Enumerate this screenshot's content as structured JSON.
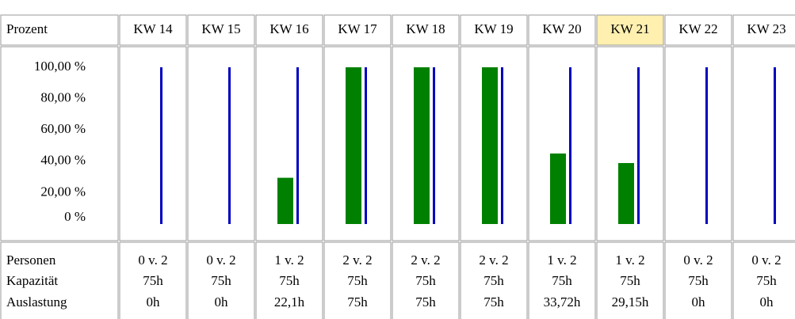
{
  "chart_data": {
    "type": "bar",
    "title": "Prozent",
    "categories": [
      "KW 14",
      "KW 15",
      "KW 16",
      "KW 17",
      "KW 18",
      "KW 19",
      "KW 20",
      "KW 21",
      "KW 22",
      "KW 23"
    ],
    "highlight": "KW 21",
    "series": [
      {
        "color": "#008000",
        "values": [
          0,
          0,
          29.5,
          100,
          100,
          100,
          45,
          38.9,
          0,
          0
        ]
      },
      {
        "color": "#0000c0",
        "values": [
          100,
          100,
          100,
          100,
          100,
          100,
          100,
          100,
          100,
          100
        ]
      }
    ],
    "ylim": [
      0,
      100
    ],
    "yticks": [
      {
        "value": 100,
        "label": "100,00 %"
      },
      {
        "value": 80,
        "label": "80,00 %"
      },
      {
        "value": 60,
        "label": "60,00 %"
      },
      {
        "value": 40,
        "label": "40,00 %"
      },
      {
        "value": 20,
        "label": "20,00 %"
      },
      {
        "value": 0,
        "label": "0 %"
      }
    ]
  },
  "table": {
    "row_labels": [
      "Personen",
      "Kapazität",
      "Auslastung"
    ],
    "rows": [
      [
        "0 v. 2",
        "0 v. 2",
        "1 v. 2",
        "2 v. 2",
        "2 v. 2",
        "2 v. 2",
        "1 v. 2",
        "1 v. 2",
        "0 v. 2",
        "0 v. 2"
      ],
      [
        "75h",
        "75h",
        "75h",
        "75h",
        "75h",
        "75h",
        "75h",
        "75h",
        "75h",
        "75h"
      ],
      [
        "0h",
        "0h",
        "22,1h",
        "75h",
        "75h",
        "75h",
        "33,72h",
        "29,15h",
        "0h",
        "0h"
      ]
    ]
  }
}
